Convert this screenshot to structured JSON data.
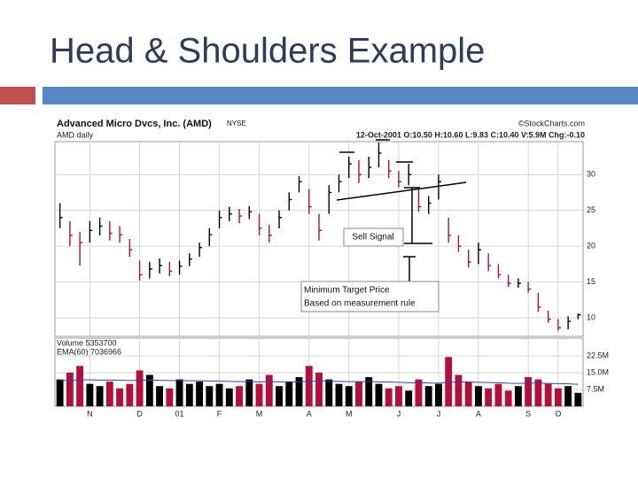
{
  "slide": {
    "title": "Head & Shoulders Example"
  },
  "chart_data": {
    "type": "ohlc",
    "title": "Advanced Micro Dvcs, Inc. (AMD)",
    "exchange": "NYSE",
    "subtitle": "AMD daily",
    "source": "©StockCharts.com",
    "quote": "12-Oct-2001 O:10.50 H:10.60 L:9.83 C:10.40 V:5.9M Chg:-0.10",
    "categories": [
      null,
      null,
      null,
      "N",
      null,
      null,
      null,
      null,
      "D",
      null,
      null,
      null,
      "01",
      null,
      null,
      null,
      "F",
      null,
      null,
      null,
      "M",
      null,
      null,
      null,
      null,
      "A",
      null,
      null,
      null,
      "M",
      null,
      null,
      null,
      null,
      "J",
      null,
      null,
      null,
      "J",
      null,
      null,
      null,
      "A",
      null,
      null,
      null,
      null,
      "S",
      null,
      null,
      "O",
      null,
      null
    ],
    "high": [
      26,
      23.5,
      22,
      23.5,
      24,
      23.5,
      22.8,
      21,
      18,
      17.8,
      18.3,
      17.8,
      18,
      19,
      20.5,
      22.5,
      25,
      25.5,
      25.2,
      25.6,
      24.5,
      23,
      25,
      27.5,
      29.8,
      28,
      24.5,
      28.5,
      30,
      32.5,
      32,
      32.5,
      34.5,
      32,
      30.5,
      31.5,
      28,
      27,
      30,
      24,
      21.5,
      19.5,
      20.5,
      19,
      17.5,
      16,
      15.5,
      15,
      13.5,
      11,
      9.8,
      10.2,
      10.6
    ],
    "low": [
      22.5,
      20,
      17.3,
      20.5,
      21.5,
      20.8,
      20.5,
      18.5,
      15.2,
      15.5,
      16.2,
      15.8,
      16,
      17.2,
      18.5,
      20,
      22.5,
      23.5,
      23.2,
      23.8,
      21.5,
      20.5,
      22.5,
      25,
      27.5,
      24.5,
      20.8,
      24.5,
      27.5,
      29.5,
      28.8,
      29.5,
      31,
      29.5,
      28.2,
      28.5,
      24.8,
      24.5,
      26.5,
      20.5,
      19.2,
      17,
      17.5,
      16.5,
      15.5,
      14.3,
      14.2,
      13.5,
      10.8,
      9.3,
      8.2,
      8.4,
      9.8
    ],
    "close": [
      24,
      21.5,
      20.5,
      22.2,
      22.8,
      21.8,
      21.6,
      19.5,
      16,
      16.8,
      17.3,
      16.5,
      17.2,
      18.2,
      19.8,
      21.6,
      24,
      24.5,
      24.2,
      24.8,
      22.5,
      21.5,
      24,
      26.5,
      29,
      25.5,
      22.2,
      27.5,
      29,
      31.5,
      30,
      31,
      33,
      30.5,
      29,
      30,
      25.5,
      26,
      29,
      21.5,
      20,
      17.8,
      19.5,
      17.3,
      16,
      14.8,
      14.8,
      14,
      11.5,
      9.8,
      8.6,
      9.5,
      10.4
    ],
    "up_color": "#000000",
    "down_color": "#b0103a",
    "ylim": [
      7.4,
      34.6
    ],
    "yticks": [
      30,
      25,
      20,
      15,
      10
    ],
    "grid": true,
    "volume": {
      "label": "Volume 5353700",
      "values": [
        12,
        15,
        18,
        10,
        9,
        11,
        8,
        10,
        16,
        14,
        9,
        8,
        12,
        10,
        11,
        9,
        10,
        8,
        9,
        12,
        10,
        14,
        9,
        11,
        13,
        18,
        15,
        12,
        10,
        9,
        11,
        13,
        10,
        8,
        9,
        7,
        12,
        9,
        10,
        22,
        14,
        11,
        9,
        8,
        10,
        7,
        9,
        13,
        12,
        10,
        8,
        9,
        6
      ],
      "ylim": [
        0,
        30.4
      ],
      "yticks": [
        {
          "value": 22.5,
          "label": "22.5M"
        },
        {
          "value": 15,
          "label": "15.0M"
        },
        {
          "value": 7.5,
          "label": "7.5M"
        }
      ]
    },
    "ema": {
      "label": "EMA(60) 7036966",
      "color": "#2a3fbf",
      "values": [
        11.5,
        11.6,
        11.8,
        11.8,
        11.7,
        11.7,
        11.6,
        11.5,
        11.6,
        11.7,
        11.6,
        11.5,
        11.5,
        11.4,
        11.4,
        11.3,
        11.2,
        11.1,
        11.0,
        11.0,
        10.9,
        11.0,
        10.9,
        10.9,
        10.9,
        11.1,
        11.2,
        11.2,
        11.1,
        11.0,
        11.0,
        11.0,
        10.9,
        10.8,
        10.7,
        10.5,
        10.5,
        10.4,
        10.3,
        10.7,
        10.8,
        10.8,
        10.7,
        10.6,
        10.5,
        10.3,
        10.2,
        10.3,
        10.3,
        10.2,
        10.1,
        10.0,
        9.8
      ]
    },
    "annotations": [
      "Sell Signal",
      [
        "Minimum Target Price",
        "Based on measurement rule"
      ]
    ]
  }
}
